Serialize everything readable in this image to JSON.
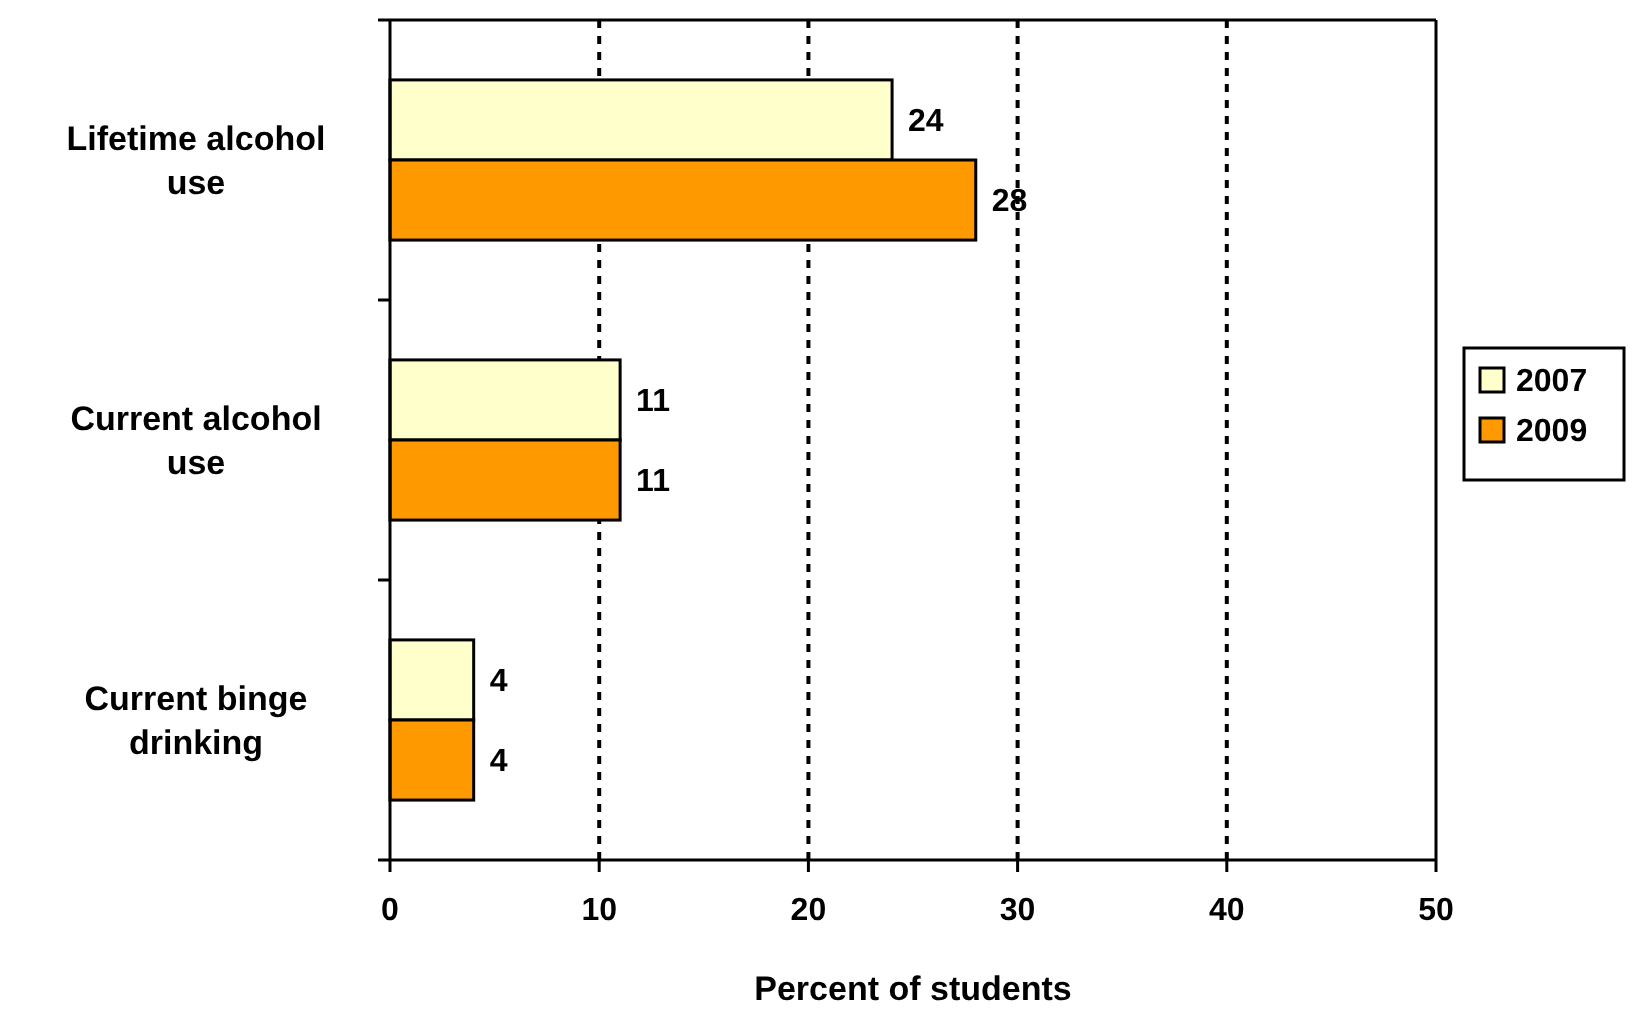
{
  "chart_data": {
    "type": "bar",
    "orientation": "horizontal",
    "categories": [
      "Lifetime alcohol use",
      "Current alcohol use",
      "Current binge drinking"
    ],
    "series": [
      {
        "name": "2007",
        "color": "#ffffcc",
        "values": [
          24,
          11,
          4
        ]
      },
      {
        "name": "2009",
        "color": "#ff9900",
        "values": [
          28,
          11,
          4
        ]
      }
    ],
    "xlim": [
      0,
      50
    ],
    "xticks": [
      0,
      10,
      20,
      30,
      40,
      50
    ],
    "xlabel": "Percent of students",
    "grid": "x",
    "legend": "right",
    "data_labels": true
  }
}
